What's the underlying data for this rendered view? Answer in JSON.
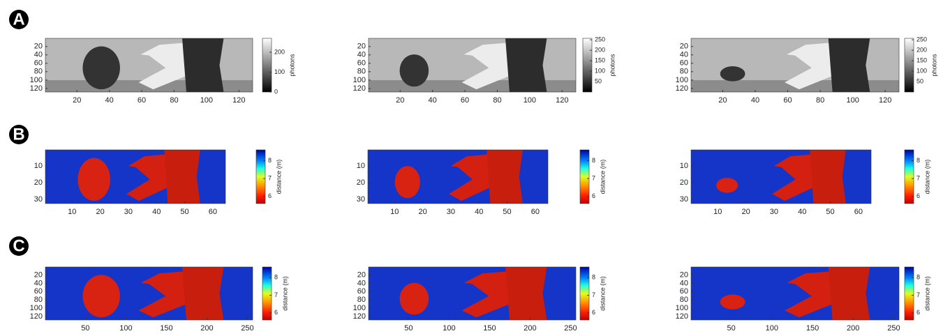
{
  "panel_labels": [
    "A",
    "B",
    "C"
  ],
  "chart_data": [
    {
      "type": "image",
      "colormap": "gray",
      "xlim": [
        0.5,
        128.5
      ],
      "ylim": [
        0.5,
        128.5
      ],
      "xticks": [
        20,
        40,
        60,
        80,
        100,
        120
      ],
      "yticks": [
        20,
        40,
        60,
        80,
        100,
        120
      ],
      "colorbar_lim": [
        0,
        270
      ],
      "colorbar_ticks": [
        0,
        100,
        200
      ],
      "colorbar_label": "photons"
    },
    {
      "type": "image",
      "colormap": "gray",
      "xlim": [
        0.5,
        128.5
      ],
      "ylim": [
        0.5,
        128.5
      ],
      "xticks": [
        20,
        40,
        60,
        80,
        100,
        120
      ],
      "yticks": [
        20,
        40,
        60,
        80,
        100,
        120
      ],
      "colorbar_lim": [
        0,
        257
      ],
      "colorbar_ticks": [
        50,
        100,
        150,
        200,
        250
      ],
      "colorbar_label": "photons"
    },
    {
      "type": "image",
      "colormap": "gray",
      "xlim": [
        0.5,
        128.5
      ],
      "ylim": [
        0.5,
        128.5
      ],
      "xticks": [
        20,
        40,
        60,
        80,
        100,
        120
      ],
      "yticks": [
        20,
        40,
        60,
        80,
        100,
        120
      ],
      "colorbar_lim": [
        0,
        257
      ],
      "colorbar_ticks": [
        50,
        100,
        150,
        200,
        250
      ],
      "colorbar_label": "photons"
    },
    {
      "type": "image",
      "colormap": "jet",
      "xlim": [
        0.5,
        64.5
      ],
      "ylim": [
        0.5,
        32.5
      ],
      "xticks": [
        10,
        20,
        30,
        40,
        50,
        60
      ],
      "yticks": [
        10,
        20,
        30
      ],
      "colorbar_lim": [
        5.6,
        8.6
      ],
      "colorbar_ticks": [
        6,
        7,
        8
      ],
      "colorbar_label": "distance (m)"
    },
    {
      "type": "image",
      "colormap": "jet",
      "xlim": [
        0.5,
        64.5
      ],
      "ylim": [
        0.5,
        32.5
      ],
      "xticks": [
        10,
        20,
        30,
        40,
        50,
        60
      ],
      "yticks": [
        10,
        20,
        30
      ],
      "colorbar_lim": [
        5.6,
        8.6
      ],
      "colorbar_ticks": [
        6,
        7,
        8
      ],
      "colorbar_label": "distance (m)"
    },
    {
      "type": "image",
      "colormap": "jet",
      "xlim": [
        0.5,
        64.5
      ],
      "ylim": [
        0.5,
        32.5
      ],
      "xticks": [
        10,
        20,
        30,
        40,
        50,
        60
      ],
      "yticks": [
        10,
        20,
        30
      ],
      "colorbar_lim": [
        5.6,
        8.6
      ],
      "colorbar_ticks": [
        6,
        7,
        8
      ],
      "colorbar_label": "distance (m)"
    },
    {
      "type": "image",
      "colormap": "jet",
      "xlim": [
        0.5,
        256.5
      ],
      "ylim": [
        0.5,
        128.5
      ],
      "xticks": [
        50,
        100,
        150,
        200,
        250
      ],
      "yticks": [
        20,
        40,
        60,
        80,
        100,
        120
      ],
      "colorbar_lim": [
        5.6,
        8.6
      ],
      "colorbar_ticks": [
        6,
        7,
        8
      ],
      "colorbar_label": "distance (m)"
    },
    {
      "type": "image",
      "colormap": "jet",
      "xlim": [
        0.5,
        256.5
      ],
      "ylim": [
        0.5,
        128.5
      ],
      "xticks": [
        50,
        100,
        150,
        200,
        250
      ],
      "yticks": [
        20,
        40,
        60,
        80,
        100,
        120
      ],
      "colorbar_lim": [
        5.6,
        8.6
      ],
      "colorbar_ticks": [
        6,
        7,
        8
      ],
      "colorbar_label": "distance (m)"
    },
    {
      "type": "image",
      "colormap": "jet",
      "xlim": [
        0.5,
        256.5
      ],
      "ylim": [
        0.5,
        128.5
      ],
      "xticks": [
        50,
        100,
        150,
        200,
        250
      ],
      "yticks": [
        20,
        40,
        60,
        80,
        100,
        120
      ],
      "colorbar_lim": [
        5.6,
        8.6
      ],
      "colorbar_ticks": [
        6,
        7,
        8
      ],
      "colorbar_label": "distance (m)"
    }
  ]
}
